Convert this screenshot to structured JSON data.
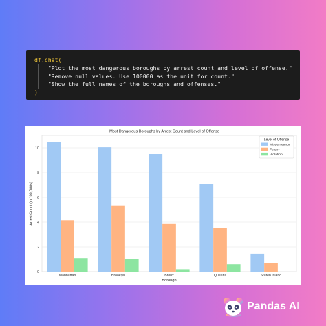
{
  "code": {
    "line1_fn": "df.chat(",
    "line2": "\"Plot the most dangerous boroughs by arrest count and level of offense.\"",
    "line3": "\"Remove null values. Use 100000 as the unit for count.\"",
    "line4": "\"Show the full names of the boroughs and offenses.\"",
    "line5": ")"
  },
  "chart_data": {
    "type": "bar",
    "title": "Most Dangerous Boroughs by Arrest Count and Level of Offense",
    "xlabel": "Borough",
    "ylabel": "Arrest Count (in 100,000s)",
    "categories": [
      "Manhattan",
      "Brooklyn",
      "Bronx",
      "Queens",
      "Staten Island"
    ],
    "series": [
      {
        "name": "Misdemeanor",
        "color": "#a1c9f4",
        "values": [
          10.5,
          10.05,
          9.5,
          7.1,
          1.45
        ]
      },
      {
        "name": "Felony",
        "color": "#ffb482",
        "values": [
          4.15,
          5.35,
          3.9,
          3.55,
          0.7
        ]
      },
      {
        "name": "Violation",
        "color": "#8de5a1",
        "values": [
          1.1,
          1.05,
          0.2,
          0.6,
          0.0
        ]
      }
    ],
    "ylim": [
      0,
      11
    ],
    "yticks": [
      0,
      2,
      4,
      6,
      8,
      10
    ],
    "legend_title": "Level of Offense",
    "legend_position": "top-right",
    "grid": true
  },
  "brand": {
    "name": "Pandas AI"
  }
}
